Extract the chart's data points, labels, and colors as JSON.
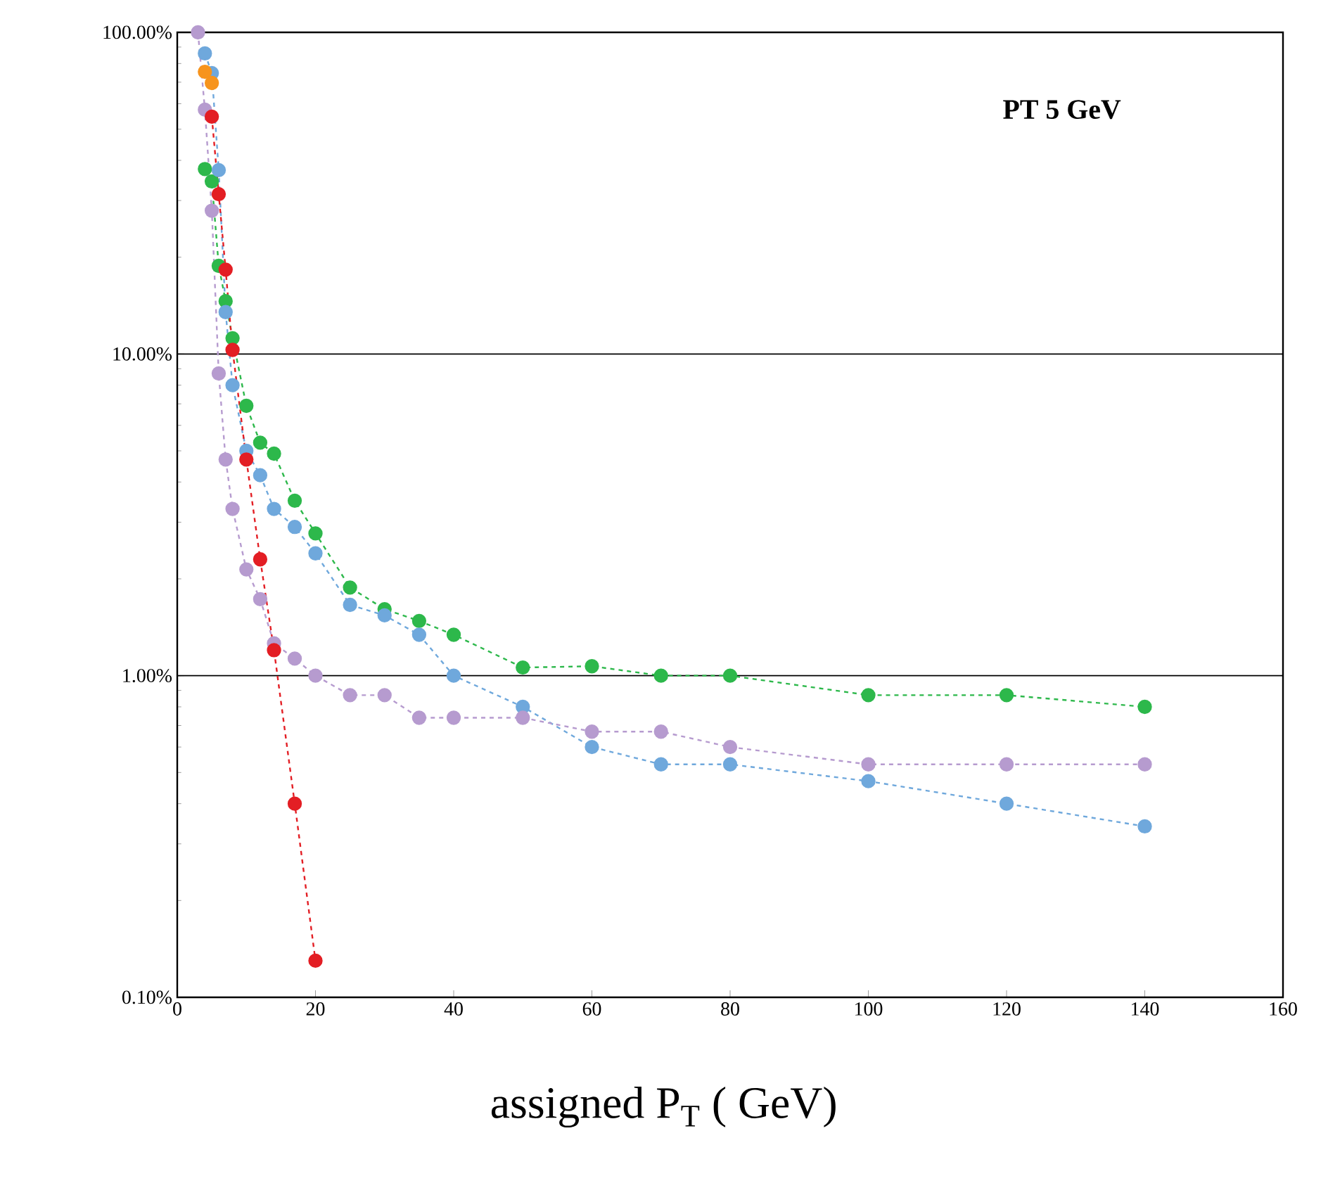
{
  "chart_data": {
    "type": "line",
    "xlabel": "assigned P$_{T}$ ( GeV)",
    "annotations": [
      "PT 5 GeV"
    ],
    "log": "y",
    "grid": "y",
    "marker": "circle",
    "line_style": "dashed",
    "xlim": [
      0,
      160
    ],
    "xticks": [
      0,
      20,
      40,
      60,
      80,
      100,
      120,
      140,
      160
    ],
    "ylim": [
      0.1,
      100
    ],
    "yticks": [
      {
        "value": 0.1,
        "label": "0.10%"
      },
      {
        "value": 1,
        "label": "1.00%"
      },
      {
        "value": 10,
        "label": "10.00%"
      },
      {
        "value": 100,
        "label": "100.00%"
      }
    ],
    "series": [
      {
        "color": "#2db84b",
        "x": [
          4,
          5,
          6,
          7,
          8,
          10,
          12,
          14,
          17,
          20,
          25,
          30,
          35,
          40,
          50,
          60,
          70,
          80,
          100,
          120,
          140
        ],
        "values": [
          37.6,
          34.4,
          18.8,
          14.6,
          11.2,
          6.9,
          5.3,
          4.9,
          3.5,
          2.77,
          1.88,
          1.61,
          1.48,
          1.34,
          1.06,
          1.07,
          1.0,
          1.0,
          0.87,
          0.87,
          0.8
        ]
      },
      {
        "color": "#6fa8dc",
        "x": [
          4,
          5,
          6,
          7,
          8,
          10,
          12,
          14,
          17,
          20,
          25,
          30,
          35,
          40,
          50,
          60,
          70,
          80,
          100,
          120,
          140
        ],
        "values": [
          86,
          74.7,
          37.3,
          13.5,
          8.0,
          5.0,
          4.2,
          3.3,
          2.9,
          2.4,
          1.66,
          1.54,
          1.34,
          1.0,
          0.8,
          0.6,
          0.53,
          0.53,
          0.47,
          0.4,
          0.34
        ]
      },
      {
        "color": "#b69bcf",
        "x": [
          3,
          4,
          5,
          6,
          7,
          8,
          10,
          12,
          14,
          17,
          20,
          25,
          30,
          35,
          40,
          50,
          60,
          70,
          80,
          100,
          120,
          140
        ],
        "values": [
          100,
          57.5,
          27.9,
          8.7,
          4.7,
          3.3,
          2.14,
          1.73,
          1.26,
          1.13,
          1.0,
          0.87,
          0.87,
          0.74,
          0.74,
          0.74,
          0.67,
          0.67,
          0.6,
          0.53,
          0.53,
          0.53
        ]
      },
      {
        "color": "#e31e24",
        "x": [
          5,
          6,
          7,
          8,
          10,
          12,
          14,
          17,
          20
        ],
        "values": [
          54.7,
          31.4,
          18.3,
          10.3,
          4.7,
          2.3,
          1.2,
          0.4,
          0.13
        ]
      },
      {
        "type": "scatter",
        "color": "#f7941d",
        "x": [
          4,
          5
        ],
        "values": [
          75.4,
          69.6
        ]
      }
    ]
  }
}
